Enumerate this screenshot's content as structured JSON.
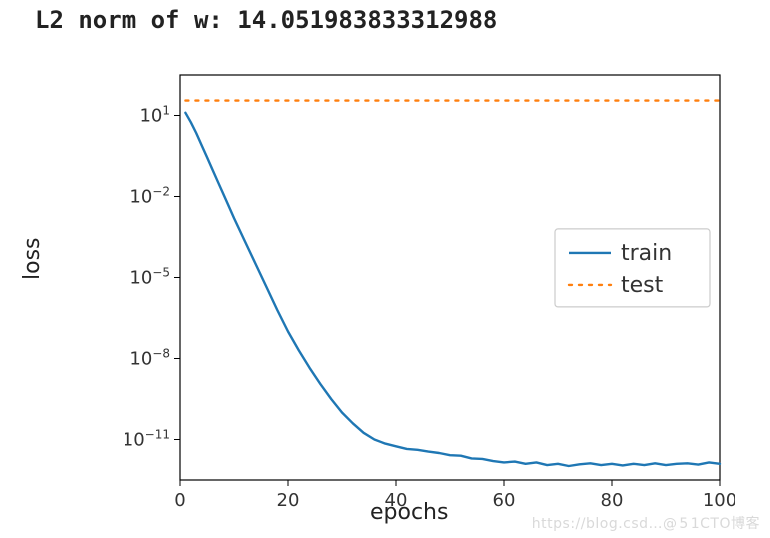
{
  "header": {
    "text": "L2 norm of w: 14.051983833312988"
  },
  "chart": {
    "type": "line",
    "xlabel": "epochs",
    "ylabel": "loss",
    "xlim": [
      0,
      100
    ],
    "ylim_exp": [
      -12.5,
      2.5
    ],
    "scale": "log",
    "x_ticks": [
      0,
      20,
      40,
      60,
      80,
      100
    ],
    "y_tick_exponents": [
      -11,
      -8,
      -5,
      -2,
      1
    ],
    "background_color": "#ffffff",
    "border_color": "#000000",
    "tick_fontsize": 18,
    "label_fontsize": 22,
    "line_width": 2.4,
    "series": {
      "train": {
        "color": "#1f77b4",
        "dash": "none",
        "points_log10": [
          [
            1,
            1.1
          ],
          [
            2,
            0.75
          ],
          [
            3,
            0.35
          ],
          [
            4,
            -0.1
          ],
          [
            5,
            -0.55
          ],
          [
            6,
            -1.0
          ],
          [
            7,
            -1.45
          ],
          [
            8,
            -1.9
          ],
          [
            9,
            -2.35
          ],
          [
            10,
            -2.8
          ],
          [
            12,
            -3.65
          ],
          [
            14,
            -4.5
          ],
          [
            16,
            -5.35
          ],
          [
            18,
            -6.2
          ],
          [
            20,
            -7.0
          ],
          [
            22,
            -7.7
          ],
          [
            24,
            -8.35
          ],
          [
            26,
            -8.95
          ],
          [
            28,
            -9.5
          ],
          [
            30,
            -10.0
          ],
          [
            32,
            -10.4
          ],
          [
            34,
            -10.75
          ],
          [
            36,
            -11.0
          ],
          [
            38,
            -11.15
          ],
          [
            40,
            -11.25
          ],
          [
            42,
            -11.35
          ],
          [
            44,
            -11.38
          ],
          [
            46,
            -11.45
          ],
          [
            48,
            -11.5
          ],
          [
            50,
            -11.58
          ],
          [
            52,
            -11.6
          ],
          [
            54,
            -11.7
          ],
          [
            56,
            -11.72
          ],
          [
            58,
            -11.8
          ],
          [
            60,
            -11.85
          ],
          [
            62,
            -11.82
          ],
          [
            64,
            -11.9
          ],
          [
            66,
            -11.85
          ],
          [
            68,
            -11.95
          ],
          [
            70,
            -11.9
          ],
          [
            72,
            -11.98
          ],
          [
            74,
            -11.92
          ],
          [
            76,
            -11.88
          ],
          [
            78,
            -11.95
          ],
          [
            80,
            -11.9
          ],
          [
            82,
            -11.96
          ],
          [
            84,
            -11.9
          ],
          [
            86,
            -11.95
          ],
          [
            88,
            -11.88
          ],
          [
            90,
            -11.95
          ],
          [
            92,
            -11.9
          ],
          [
            94,
            -11.88
          ],
          [
            96,
            -11.93
          ],
          [
            98,
            -11.85
          ],
          [
            100,
            -11.9
          ]
        ]
      },
      "test": {
        "color": "#ff7f0e",
        "dash": "dotted",
        "points_log10": [
          [
            1,
            1.55
          ],
          [
            100,
            1.55
          ]
        ]
      }
    },
    "legend": {
      "position": "right",
      "labels": {
        "train": "train",
        "test": "test"
      },
      "border_color": "#cccccc"
    }
  },
  "watermark": "https://blog.csd…@ 5 1CTO博客"
}
